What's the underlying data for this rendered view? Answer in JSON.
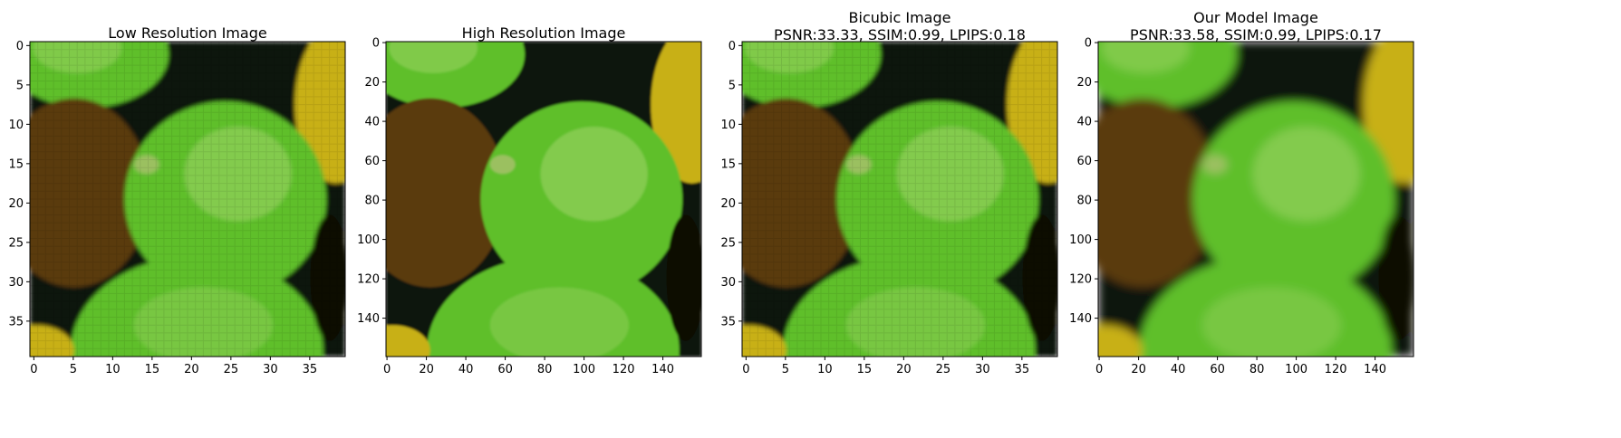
{
  "figure": {
    "panels": [
      {
        "title_lines": [
          "Low Resolution Image"
        ],
        "x_ticks": [
          0,
          5,
          10,
          15,
          20,
          25,
          30,
          35
        ],
        "y_ticks": [
          0,
          5,
          10,
          15,
          20,
          25,
          30,
          35
        ],
        "range": 40,
        "style": "pixelated"
      },
      {
        "title_lines": [
          "High Resolution Image"
        ],
        "x_ticks": [
          0,
          20,
          40,
          60,
          80,
          100,
          120,
          140
        ],
        "y_ticks": [
          0,
          20,
          40,
          60,
          80,
          100,
          120,
          140
        ],
        "range": 160,
        "style": "sharp"
      },
      {
        "title_lines": [
          "Bicubic Image",
          "PSNR:33.33, SSIM:0.99, LPIPS:0.18"
        ],
        "x_ticks": [
          0,
          5,
          10,
          15,
          20,
          25,
          30,
          35
        ],
        "y_ticks": [
          0,
          5,
          10,
          15,
          20,
          25,
          30,
          35
        ],
        "range": 40,
        "style": "pixelated"
      },
      {
        "title_lines": [
          "Our Model Image",
          "PSNR:33.58, SSIM:0.99, LPIPS:0.17"
        ],
        "x_ticks": [
          0,
          20,
          40,
          60,
          80,
          100,
          120,
          140
        ],
        "y_ticks": [
          0,
          20,
          40,
          60,
          80,
          100,
          120,
          140
        ],
        "range": 160,
        "style": "blurred"
      }
    ],
    "colors": {
      "background": "#0b1208",
      "lime_green": "#5fbf2a",
      "lime_highlight": "#a8d870",
      "dark_orange_fruit": "#5a3a10",
      "yellow_fruit": "#c8b018",
      "dark_shadow": "#0a0f05"
    }
  }
}
